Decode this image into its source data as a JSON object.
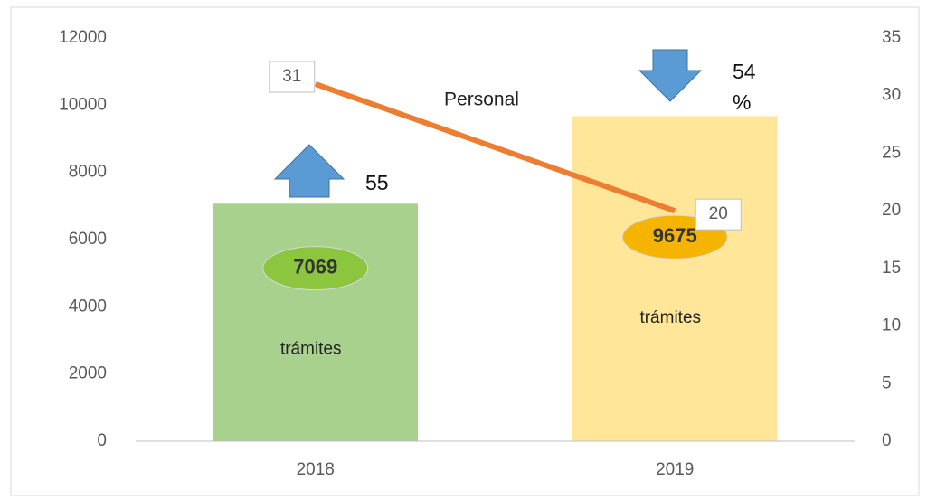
{
  "chart_data": {
    "type": "bar",
    "categories": [
      "2018",
      "2019"
    ],
    "series": [
      {
        "name": "trámites",
        "type": "bar",
        "colors": [
          "#a9d18e",
          "#ffe699"
        ],
        "label_colors": [
          "#8cc63f",
          "#f4b400"
        ],
        "values": [
          7069,
          9675
        ]
      },
      {
        "name": "Personal",
        "type": "line",
        "axis": "y2",
        "color": "#ed7d31",
        "values": [
          31,
          20
        ]
      }
    ],
    "ylim": [
      0,
      12000
    ],
    "yticks": [
      0,
      2000,
      4000,
      6000,
      8000,
      10000,
      12000
    ],
    "y2lim": [
      0,
      35
    ],
    "y2ticks": [
      0,
      5,
      10,
      15,
      20,
      25,
      30,
      35
    ],
    "annotations": [
      "55",
      "54 %"
    ]
  }
}
